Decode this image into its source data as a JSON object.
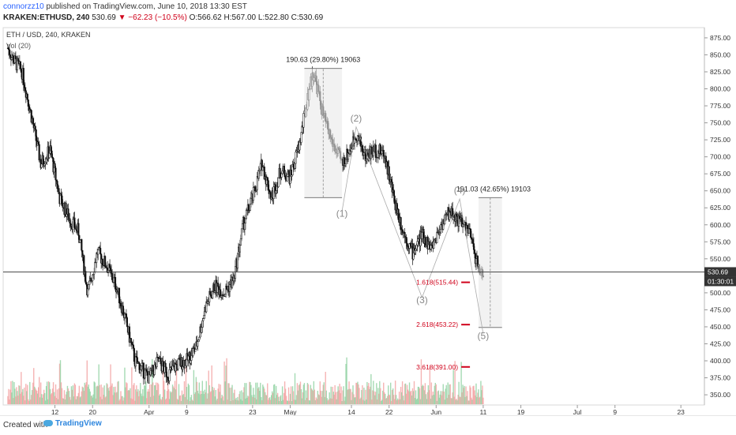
{
  "header": {
    "username": "connorzz10",
    "published_text": "published on TradingView.com, June 10, 2018 13:30 EST",
    "symbol": "KRAKEN:ETHUSD, 240",
    "last": "530.69",
    "change": "▼ −62.23 (−10.5%)",
    "ohlc_o": "O:566.62",
    "ohlc_h": "H:567.00",
    "ohlc_l": "L:522.80",
    "ohlc_c": "C:530.69"
  },
  "footer": {
    "created_with": "Created with",
    "brand": "TradingView"
  },
  "chart_data": {
    "type": "candlestick",
    "title": "ETH / USD, 240, KRAKEN",
    "volume_label": "Vol (20)",
    "y_range": [
      335,
      890
    ],
    "y_ticks": [
      350,
      375,
      400,
      425,
      450,
      475,
      500,
      525,
      550,
      575,
      600,
      625,
      650,
      675,
      700,
      725,
      750,
      775,
      800,
      825,
      850,
      875
    ],
    "x_tick_labels": [
      "12",
      "20",
      "Apr",
      "9",
      "23",
      "May",
      "14",
      "22",
      "Jun",
      "11",
      "19",
      "Jul",
      "9",
      "23"
    ],
    "price_path": [
      [
        "2018-03-02",
        860
      ],
      [
        "2018-03-03",
        845
      ],
      [
        "2018-03-05",
        825
      ],
      [
        "2018-03-07",
        760
      ],
      [
        "2018-03-09",
        690
      ],
      [
        "2018-03-11",
        710
      ],
      [
        "2018-03-13",
        640
      ],
      [
        "2018-03-15",
        610
      ],
      [
        "2018-03-17",
        590
      ],
      [
        "2018-03-19",
        500
      ],
      [
        "2018-03-21",
        560
      ],
      [
        "2018-03-23",
        540
      ],
      [
        "2018-03-25",
        510
      ],
      [
        "2018-03-27",
        460
      ],
      [
        "2018-03-29",
        400
      ],
      [
        "2018-04-01",
        375
      ],
      [
        "2018-04-03",
        400
      ],
      [
        "2018-04-05",
        380
      ],
      [
        "2018-04-07",
        395
      ],
      [
        "2018-04-09",
        400
      ],
      [
        "2018-04-11",
        420
      ],
      [
        "2018-04-13",
        480
      ],
      [
        "2018-04-15",
        510
      ],
      [
        "2018-04-17",
        500
      ],
      [
        "2018-04-19",
        520
      ],
      [
        "2018-04-21",
        600
      ],
      [
        "2018-04-23",
        640
      ],
      [
        "2018-04-25",
        690
      ],
      [
        "2018-04-27",
        640
      ],
      [
        "2018-04-29",
        680
      ],
      [
        "2018-05-01",
        670
      ],
      [
        "2018-05-03",
        720
      ],
      [
        "2018-05-05",
        800
      ],
      [
        "2018-05-06",
        825
      ],
      [
        "2018-05-08",
        760
      ],
      [
        "2018-05-10",
        720
      ],
      [
        "2018-05-12",
        690
      ],
      [
        "2018-05-14",
        715
      ],
      [
        "2018-05-15",
        735
      ],
      [
        "2018-05-17",
        700
      ],
      [
        "2018-05-19",
        710
      ],
      [
        "2018-05-21",
        705
      ],
      [
        "2018-05-23",
        640
      ],
      [
        "2018-05-25",
        590
      ],
      [
        "2018-05-27",
        560
      ],
      [
        "2018-05-29",
        585
      ],
      [
        "2018-05-31",
        565
      ],
      [
        "2018-06-02",
        600
      ],
      [
        "2018-06-04",
        620
      ],
      [
        "2018-06-06",
        605
      ],
      [
        "2018-06-08",
        590
      ],
      [
        "2018-06-10",
        535
      ],
      [
        "2018-06-11",
        530.69
      ]
    ],
    "volume_baseline": 350,
    "current_price": 530.69,
    "current_time": "01:30:01",
    "measurements": [
      {
        "label": "190.63 (29.80%) 19063",
        "from": 640,
        "to": 830
      },
      {
        "label": "191.03 (42.65%) 19103",
        "from": 640,
        "to": 449
      }
    ],
    "wave_labels": [
      {
        "label": "(1)",
        "x": "2018-05-12",
        "price": 612
      },
      {
        "label": "(2)",
        "x": "2018-05-15",
        "price": 752
      },
      {
        "label": "(3)",
        "x": "2018-05-29",
        "price": 485
      },
      {
        "label": "(4)",
        "x": "2018-06-06",
        "price": 646
      },
      {
        "label": "(5)",
        "x": "2018-06-11",
        "price": 432
      }
    ],
    "fib_levels": [
      {
        "label": "1.618(515.44)",
        "price": 515.44
      },
      {
        "label": "2.618(453.22)",
        "price": 453.22
      },
      {
        "label": "3.618(391.00)",
        "price": 391.0
      }
    ]
  }
}
